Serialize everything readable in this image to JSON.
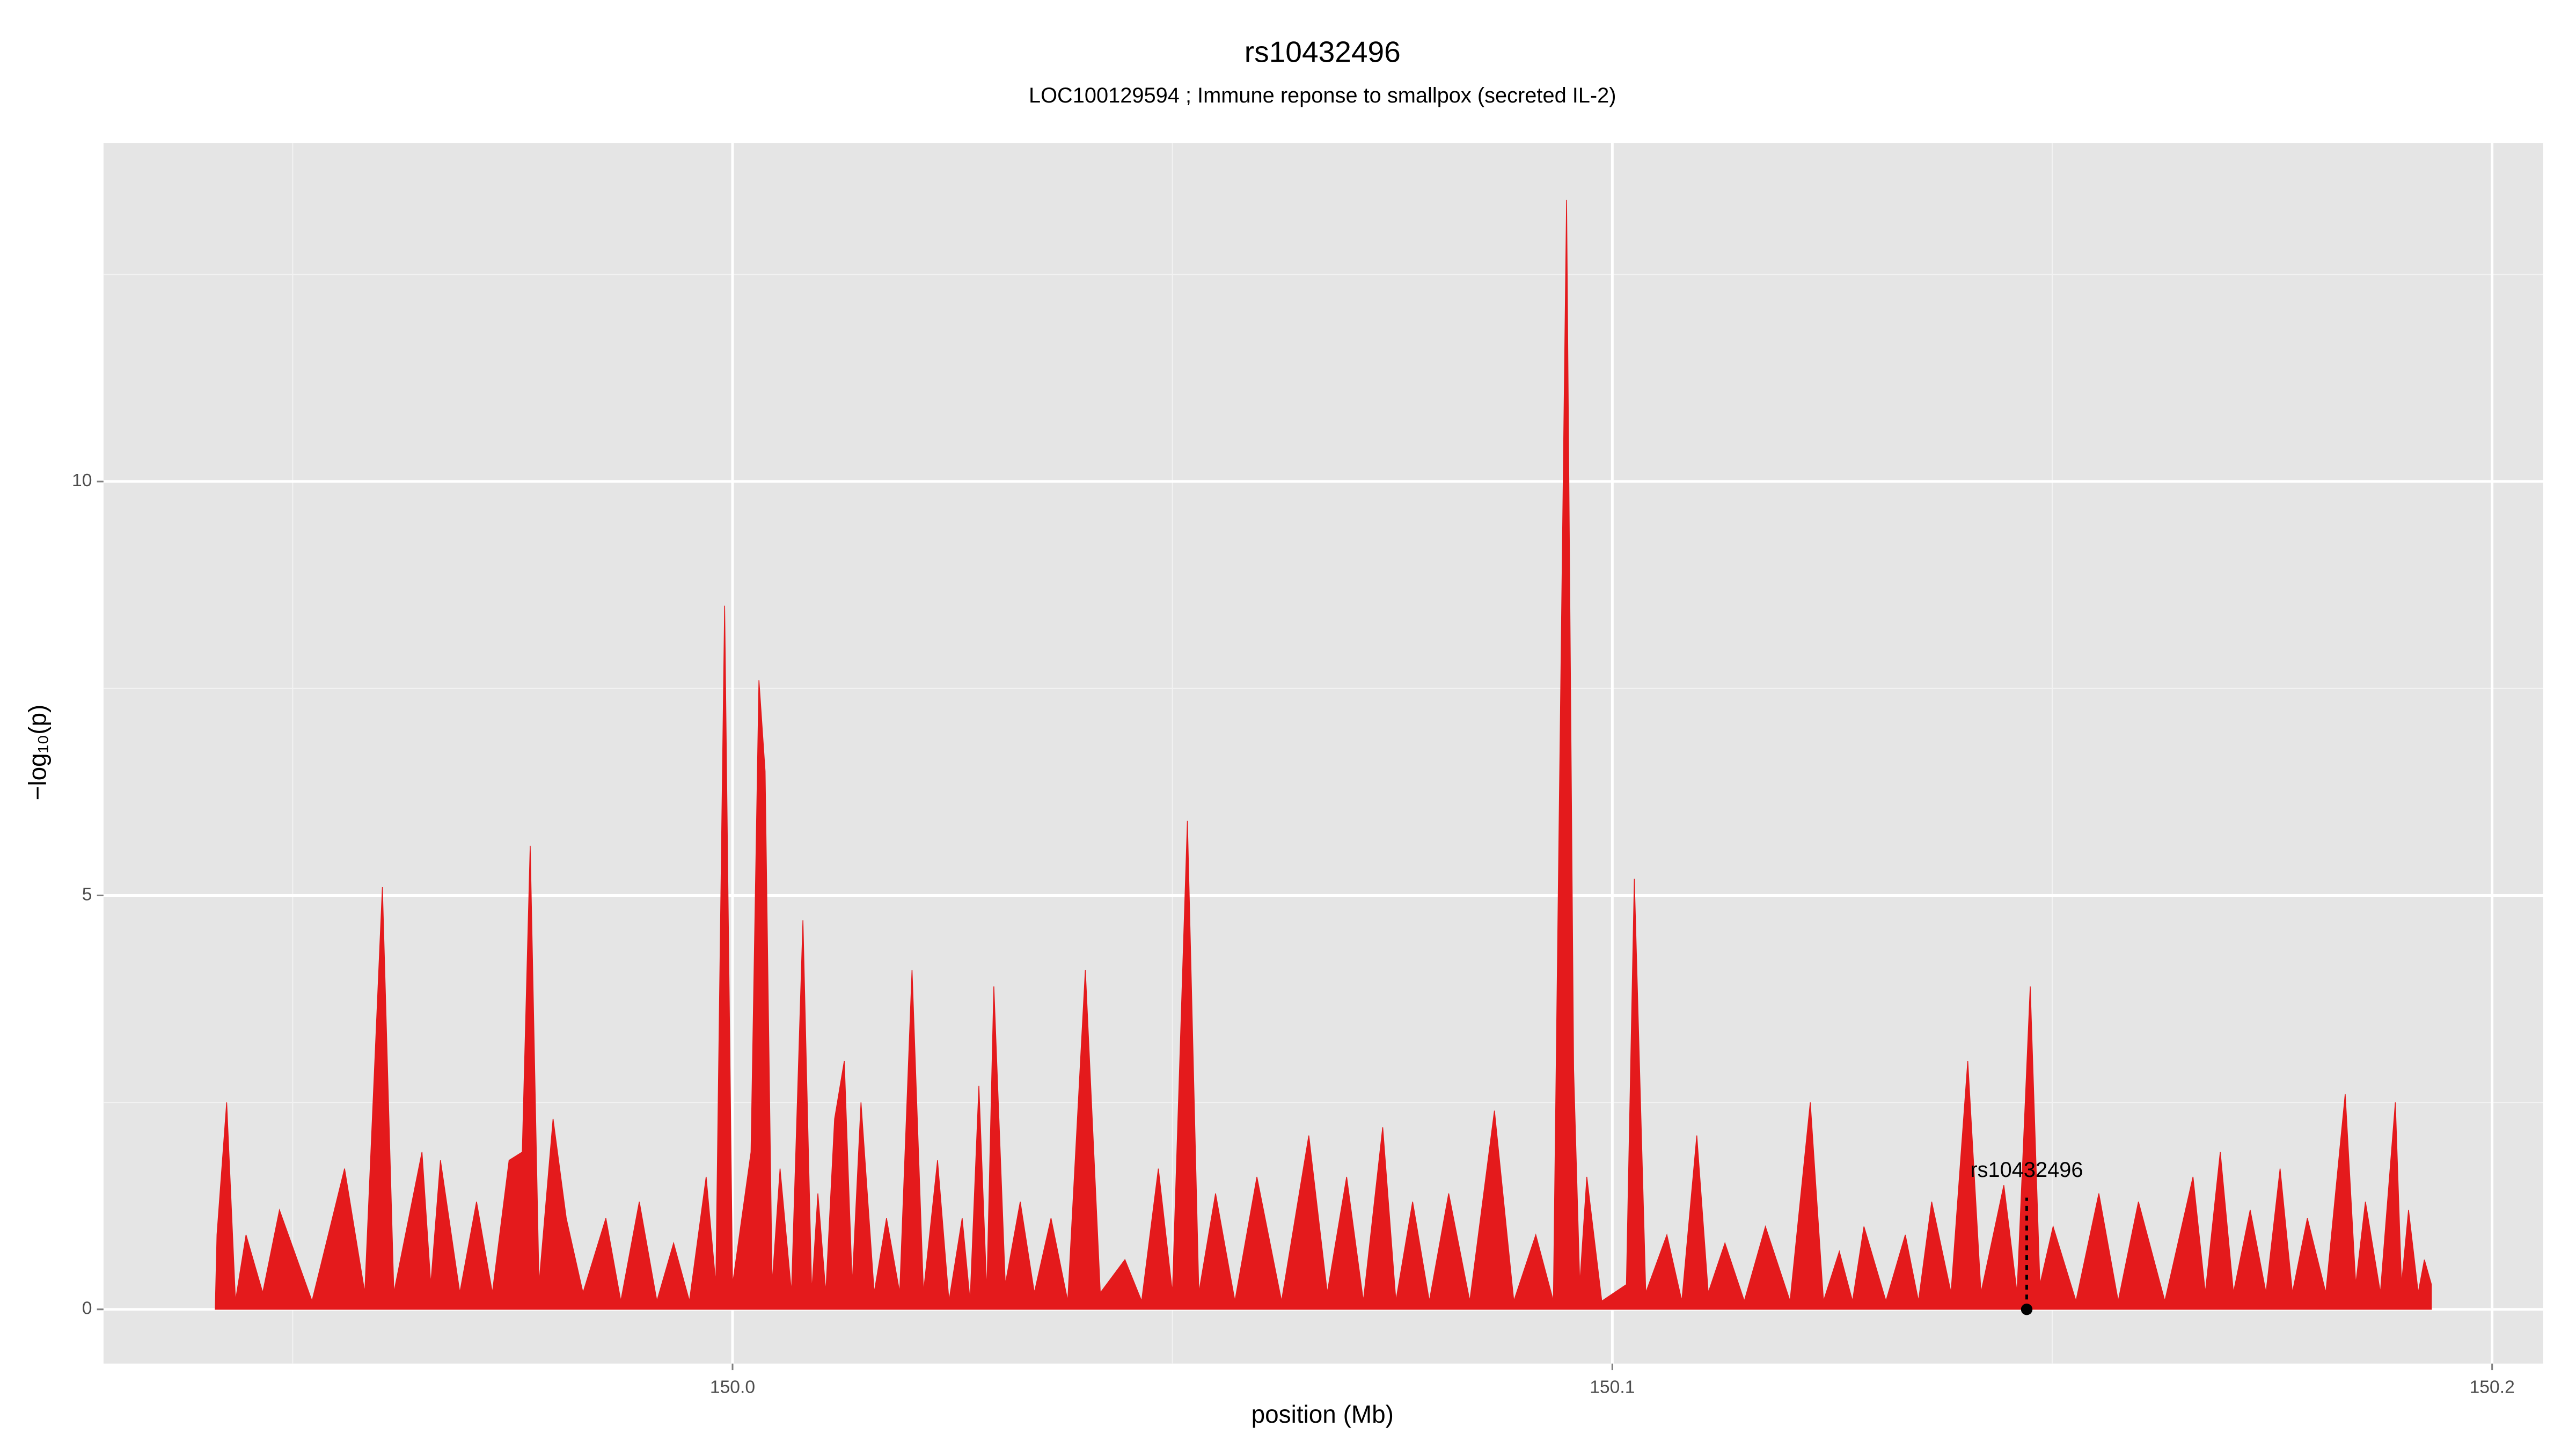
{
  "chart_data": {
    "type": "area",
    "title": "rs10432496",
    "subtitle": "LOC100129594 ; Immune reponse to smallpox (secreted IL-2)",
    "x_label": "position (Mb)",
    "y_label": "−log₁₀(p)",
    "xlim": [
      149.9285,
      150.2058
    ],
    "ylim": [
      -0.655,
      14.09
    ],
    "xticks": [
      {
        "value": 150,
        "label": "150.0"
      },
      150.1,
      150.2
    ],
    "yticks": [
      0,
      5,
      10
    ],
    "grid": true,
    "x": [
      149.9412,
      149.9414,
      149.9425,
      149.9435,
      149.9447,
      149.9466,
      149.9485,
      149.9522,
      149.9559,
      149.9582,
      149.9602,
      149.9615,
      149.9647,
      149.9657,
      149.9668,
      149.969,
      149.9709,
      149.9727,
      149.9746,
      149.9761,
      149.977,
      149.978,
      149.9796,
      149.9811,
      149.983,
      149.9856,
      149.9873,
      149.9894,
      149.9914,
      149.9933,
      149.9951,
      149.997,
      149.9981,
      149.9991,
      150.0,
      150.0021,
      150.003,
      150.0037,
      150.0045,
      150.0054,
      150.0067,
      150.008,
      150.009,
      150.0097,
      150.0106,
      150.0116,
      150.0127,
      150.0136,
      150.0146,
      150.0161,
      150.0175,
      150.019,
      150.0204,
      150.0217,
      150.0233,
      150.0246,
      150.0261,
      150.027,
      150.028,
      150.0289,
      150.0297,
      150.031,
      150.0327,
      150.0343,
      150.0362,
      150.0381,
      150.0401,
      150.0418,
      150.0446,
      150.0465,
      150.0484,
      150.05,
      150.0517,
      150.053,
      150.0549,
      150.0571,
      150.0596,
      150.0624,
      150.0655,
      150.0676,
      150.0698,
      150.0717,
      150.0739,
      150.0754,
      150.0773,
      150.0792,
      150.0814,
      150.0838,
      150.0866,
      150.0888,
      150.0913,
      150.0933,
      150.0948,
      150.0956,
      150.0963,
      150.0971,
      150.0988,
      150.1016,
      150.1025,
      150.1038,
      150.1062,
      150.1079,
      150.1096,
      150.1109,
      150.1128,
      150.115,
      150.1174,
      150.1202,
      150.1225,
      150.124,
      150.1258,
      150.1273,
      150.1286,
      150.1311,
      150.1333,
      150.1348,
      150.1363,
      150.1385,
      150.1404,
      150.1419,
      150.1445,
      150.146,
      150.1475,
      150.1486,
      150.1501,
      150.1527,
      150.1553,
      150.1575,
      150.1598,
      150.1628,
      150.166,
      150.1674,
      150.1691,
      150.1706,
      150.1725,
      150.1743,
      150.1759,
      150.1773,
      150.179,
      150.1811,
      150.1833,
      150.1845,
      150.1856,
      150.1873,
      150.189,
      150.1897,
      150.1905,
      150.1916,
      150.1923,
      150.1931
    ],
    "series": [
      {
        "color": "#e41a1c",
        "values": [
          0,
          0.9,
          2.5,
          0.1,
          0.9,
          0.2,
          1.2,
          0.1,
          1.7,
          0.2,
          5.1,
          0.2,
          1.9,
          0.3,
          1.8,
          0.2,
          1.3,
          0.2,
          1.8,
          1.9,
          5.6,
          0.3,
          2.3,
          1.1,
          0.2,
          1.1,
          0.1,
          1.3,
          0.1,
          0.8,
          0.1,
          1.6,
          0.3,
          8.5,
          0.3,
          1.9,
          7.6,
          6.5,
          0.3,
          1.7,
          0.2,
          4.7,
          0.2,
          1.4,
          0.2,
          2.3,
          3.0,
          0.3,
          2.5,
          0.2,
          1.1,
          0.2,
          4.1,
          0.2,
          1.8,
          0.1,
          1.1,
          0.1,
          2.7,
          0.2,
          3.9,
          0.3,
          1.3,
          0.2,
          1.1,
          0.1,
          4.1,
          0.2,
          0.6,
          0.1,
          1.7,
          0.2,
          5.9,
          0.2,
          1.4,
          0.1,
          1.6,
          0.1,
          2.1,
          0.2,
          1.6,
          0.1,
          2.2,
          0.1,
          1.3,
          0.1,
          1.4,
          0.1,
          2.4,
          0.1,
          0.9,
          0.1,
          13.4,
          2.9,
          0.3,
          1.6,
          0.1,
          0.3,
          5.2,
          0.2,
          0.9,
          0.1,
          2.1,
          0.2,
          0.8,
          0.1,
          1.0,
          0.1,
          2.5,
          0.1,
          0.7,
          0.1,
          1.0,
          0.1,
          0.9,
          0.1,
          1.3,
          0.2,
          3.0,
          0.2,
          1.5,
          0.2,
          3.9,
          0.3,
          1.0,
          0.1,
          1.4,
          0.1,
          1.3,
          0.1,
          1.6,
          0.2,
          1.9,
          0.2,
          1.2,
          0.2,
          1.7,
          0.2,
          1.1,
          0.2,
          2.6,
          0.3,
          1.3,
          0.2,
          2.5,
          0.3,
          1.2,
          0.2,
          0.6,
          0.3
        ]
      }
    ],
    "annotation": {
      "text": "rs10432496",
      "x": 150.1471,
      "y": 0
    }
  }
}
